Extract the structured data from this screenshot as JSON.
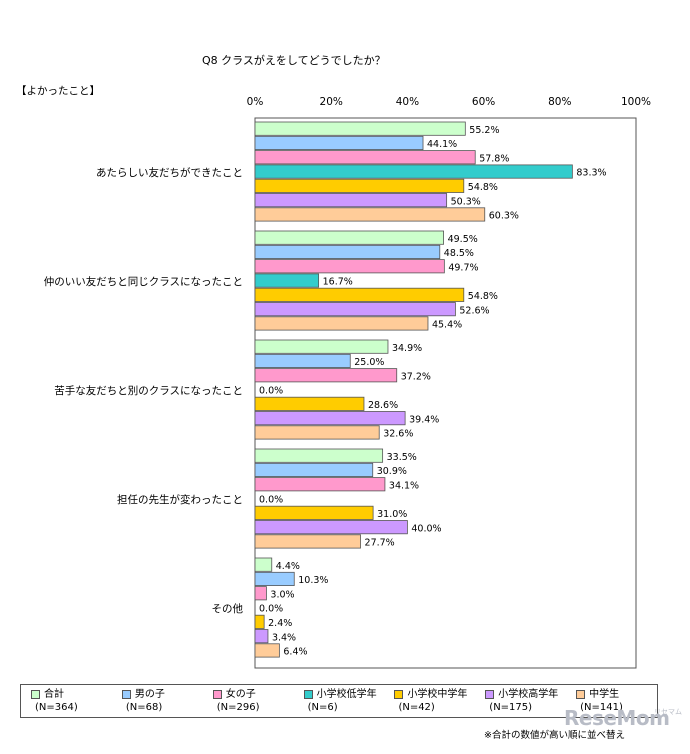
{
  "chart_data": {
    "type": "bar",
    "orientation": "horizontal",
    "title": "Q8 クラスがえをしてどうでしたか？",
    "section_label": "【よかったこと】",
    "xlim": [
      0,
      100
    ],
    "x_ticks": [
      "0%",
      "20%",
      "40%",
      "60%",
      "80%",
      "100%"
    ],
    "categories": [
      "あたらしい友だちができたこと",
      "仲のいい友だちと同じクラスになったこと",
      "苦手な友だちと別のクラスになったこと",
      "担任の先生が変わったこと",
      "その他"
    ],
    "series": [
      {
        "name": "合計",
        "n": "(N=364)",
        "color": "#ccffcc",
        "values": [
          55.2,
          49.5,
          34.9,
          33.5,
          4.4
        ]
      },
      {
        "name": "男の子",
        "n": "(N=68)",
        "color": "#99ccff",
        "values": [
          44.1,
          48.5,
          25.0,
          30.9,
          10.3
        ]
      },
      {
        "name": "女の子",
        "n": "(N=296)",
        "color": "#ff99cc",
        "values": [
          57.8,
          49.7,
          37.2,
          34.1,
          3.0
        ]
      },
      {
        "name": "小学校低学年",
        "n": "(N=6)",
        "color": "#33cccc",
        "values": [
          83.3,
          16.7,
          0.0,
          0.0,
          0.0
        ]
      },
      {
        "name": "小学校中学年",
        "n": "(N=42)",
        "color": "#ffcc00",
        "values": [
          54.8,
          54.8,
          28.6,
          31.0,
          2.4
        ]
      },
      {
        "name": "小学校高学年",
        "n": "(N=175)",
        "color": "#cc99ff",
        "values": [
          50.3,
          52.6,
          39.4,
          40.0,
          3.4
        ]
      },
      {
        "name": "中学生",
        "n": "(N=141)",
        "color": "#ffcc99",
        "values": [
          60.3,
          45.4,
          32.6,
          27.7,
          6.4
        ]
      }
    ],
    "value_format": "{v}%"
  },
  "footnote": "※合計の数値が高い順に並べ替え",
  "watermark": "ReseMom",
  "watermark_small": "リセマム"
}
